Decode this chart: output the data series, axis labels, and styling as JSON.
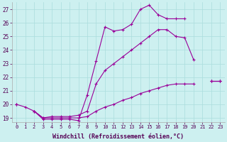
{
  "background_color": "#cdf0f0",
  "grid_color": "#aadddd",
  "line_color": "#990099",
  "xlabel": "Windchill (Refroidissement éolien,°C)",
  "x_hours": [
    0,
    1,
    2,
    3,
    4,
    5,
    6,
    7,
    8,
    9,
    10,
    11,
    12,
    13,
    14,
    15,
    16,
    17,
    18,
    19,
    20,
    21,
    22,
    23
  ],
  "line_top": [
    20.0,
    19.8,
    19.5,
    18.9,
    18.9,
    18.9,
    18.9,
    18.8,
    20.7,
    23.2,
    25.7,
    25.4,
    25.5,
    25.9,
    27.0,
    27.3,
    26.6,
    26.3,
    26.3,
    26.3,
    null,
    null,
    21.7,
    21.7
  ],
  "line_mid": [
    20.0,
    null,
    19.5,
    19.0,
    19.1,
    19.1,
    19.1,
    19.2,
    19.5,
    21.5,
    22.5,
    23.0,
    23.5,
    24.0,
    24.5,
    25.0,
    25.5,
    25.5,
    25.0,
    24.9,
    23.3,
    null,
    21.7,
    21.7
  ],
  "line_bot": [
    20.0,
    null,
    19.5,
    19.0,
    19.0,
    19.0,
    19.0,
    19.0,
    19.1,
    19.5,
    19.8,
    20.0,
    20.3,
    20.5,
    20.8,
    21.0,
    21.2,
    21.4,
    21.5,
    21.5,
    21.5,
    null,
    21.7,
    21.7
  ],
  "ylim_min": 18.7,
  "ylim_max": 27.5,
  "yticks": [
    19,
    20,
    21,
    22,
    23,
    24,
    25,
    26,
    27
  ],
  "xtick_fontsize": 5.0,
  "ytick_fontsize": 5.5,
  "xlabel_fontsize": 6.0,
  "marker_size": 3.0,
  "linewidth": 0.8
}
